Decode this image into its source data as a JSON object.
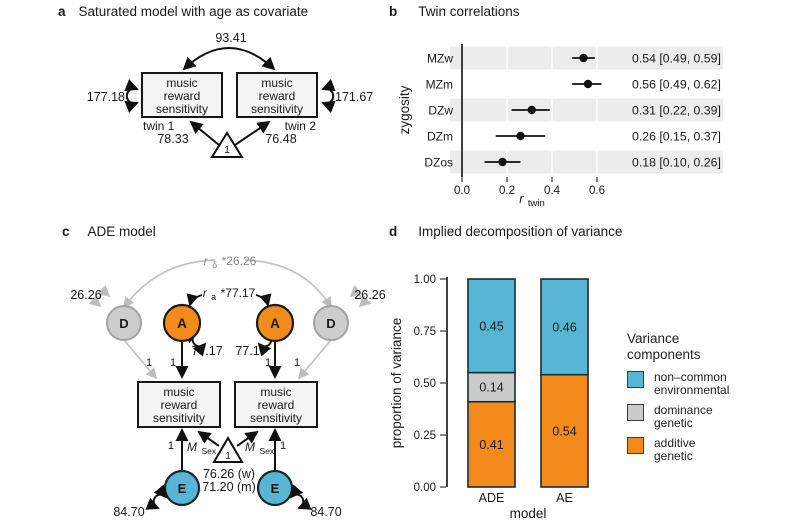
{
  "panel_a": {
    "tag": "a",
    "title": "Saturated model with age as covariate",
    "cross_twin_cov": "93.41",
    "variance_twin1": "177.18",
    "variance_twin2": "171.67",
    "box_lines": [
      "music",
      "reward",
      "sensitivity"
    ],
    "twin1": "twin 1",
    "twin2": "twin 2",
    "mean_twin1": "78.33",
    "mean_twin2": "76.48",
    "constant": "1"
  },
  "panel_b": {
    "tag": "b",
    "title": "Twin correlations"
  },
  "panel_c": {
    "tag": "c",
    "title": "ADE model",
    "d_label": "D",
    "a_label": "A",
    "e_label": "E",
    "d_variance_left": "26.26",
    "d_variance_right": "26.26",
    "a_variance_left": "77.17",
    "a_variance_right": "77.17",
    "e_variance_left": "84.70",
    "e_variance_right": "84.70",
    "rd_cov": {
      "prefix": "r",
      "sub": "δ",
      "rest": "*26.26"
    },
    "ra_cov": {
      "prefix": "r",
      "sub": "a",
      "rest": "*77.17"
    },
    "one": "1",
    "msex": {
      "prefix": "M",
      "sub": "Sex"
    },
    "mean_women": "76.26 (w)",
    "mean_men": "71.20 (m)",
    "box_lines": [
      "music",
      "reward",
      "sensitivity"
    ]
  },
  "panel_d": {
    "tag": "d",
    "title": "Implied decomposition of variance"
  },
  "chart_data": [
    {
      "type": "scatter",
      "subtype": "forest",
      "title": "Twin correlations",
      "ylabel": "zygosity",
      "xlabel_parts": {
        "prefix": "r",
        "sub": "twin"
      },
      "xlim": [
        -0.05,
        0.72
      ],
      "xticks": [
        "0.0",
        "0.2",
        "0.4",
        "0.6"
      ],
      "xtick_values": [
        0,
        0.2,
        0.4,
        0.6
      ],
      "grid": true,
      "rows": [
        {
          "label": "MZw",
          "estimate": 0.54,
          "ci_low": 0.49,
          "ci_high": 0.59,
          "text": "0.54 [0.49, 0.59]"
        },
        {
          "label": "MZm",
          "estimate": 0.56,
          "ci_low": 0.49,
          "ci_high": 0.62,
          "text": "0.56 [0.49, 0.62]"
        },
        {
          "label": "DZw",
          "estimate": 0.31,
          "ci_low": 0.22,
          "ci_high": 0.39,
          "text": "0.31 [0.22, 0.39]"
        },
        {
          "label": "DZm",
          "estimate": 0.26,
          "ci_low": 0.15,
          "ci_high": 0.37,
          "text": "0.26 [0.15, 0.37]"
        },
        {
          "label": "DZos",
          "estimate": 0.18,
          "ci_low": 0.1,
          "ci_high": 0.26,
          "text": "0.18 [0.10, 0.26]"
        }
      ]
    },
    {
      "type": "bar",
      "stacked": true,
      "title": "Implied decomposition of variance",
      "xlabel": "model",
      "ylabel": "proportion of variance",
      "ylim": [
        0,
        1
      ],
      "yticks": [
        "1.00",
        "0.75",
        "0.50",
        "0.25",
        "0.00"
      ],
      "ytick_values": [
        1.0,
        0.75,
        0.5,
        0.25,
        0
      ],
      "categories": [
        "ADE",
        "AE"
      ],
      "series": [
        {
          "name": "additive genetic",
          "color": "#F28A1C",
          "values": [
            0.41,
            0.54
          ]
        },
        {
          "name": "dominance genetic",
          "color": "#CBCBCB",
          "values": [
            0.14,
            0
          ]
        },
        {
          "name": "non-common environmental",
          "color": "#56B6D3",
          "values": [
            0.45,
            0.46
          ]
        }
      ],
      "legend": {
        "title": "Variance components",
        "entries": [
          {
            "lines": [
              "non–common",
              "environmental"
            ],
            "color": "#56B6D3"
          },
          {
            "lines": [
              "dominance",
              "genetic"
            ],
            "color": "#CBCBCB"
          },
          {
            "lines": [
              "additive",
              "genetic"
            ],
            "color": "#F28A1C"
          }
        ]
      }
    }
  ],
  "colors": {
    "additive_orange": "#F28A1C",
    "environment_blue": "#56B6D3",
    "dominance_gray": "#CBCBCB",
    "band_gray": "#ECECEC",
    "gray_path": "#C2C2C2",
    "box_fill": "#F4F4F4"
  }
}
